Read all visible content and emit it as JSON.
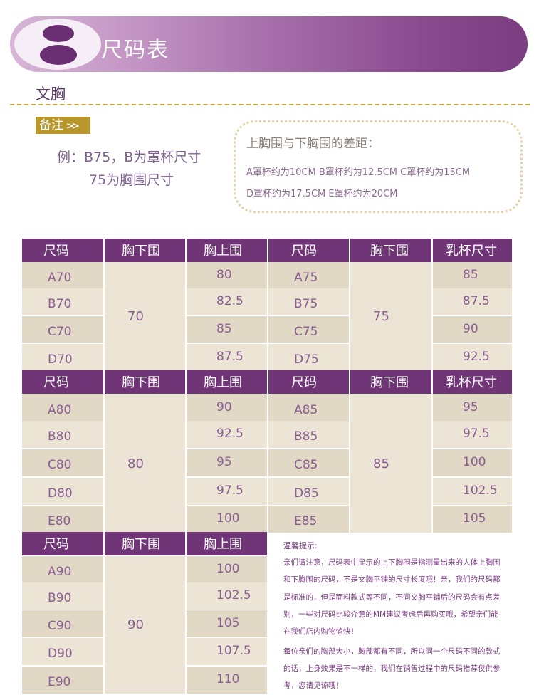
{
  "header": {
    "title": "尺码表"
  },
  "section": {
    "title": "文胸"
  },
  "note": {
    "badge": "备注",
    "badge_arrows": ">>",
    "example_line1": "例：B75，B为罩杯尺寸",
    "example_line2": "75为胸围尺寸"
  },
  "difference": {
    "title": "上胸围与下胸围的差距：",
    "line1": "A罩杯约为10CM  B罩杯约为12.5CM   C罩杯约为15CM",
    "line2": "D罩杯约为17.5CM  E罩杯约为20CM"
  },
  "headers": {
    "size": "尺码",
    "under_bust": "胸下围",
    "upper_bust": "胸上围",
    "cup_size": "乳杯尺寸"
  },
  "table1": {
    "left": {
      "under": "70",
      "sizes": [
        "A70",
        "B70",
        "C70",
        "D70"
      ],
      "upper": [
        "80",
        "82.5",
        "85",
        "87.5"
      ]
    },
    "right": {
      "under": "75",
      "sizes": [
        "A75",
        "B75",
        "C75",
        "D75"
      ],
      "upper": [
        "85",
        "87.5",
        "90",
        "92.5"
      ]
    }
  },
  "table2": {
    "left": {
      "under": "80",
      "sizes": [
        "A80",
        "B80",
        "C80",
        "D80",
        "E80"
      ],
      "upper": [
        "90",
        "92.5",
        "95",
        "97.5",
        "100"
      ]
    },
    "right": {
      "under": "85",
      "sizes": [
        "A85",
        "B85",
        "C85",
        "D85",
        "E85"
      ],
      "upper": [
        "95",
        "97.5",
        "100",
        "102.5",
        "105"
      ]
    }
  },
  "table3": {
    "left": {
      "under": "90",
      "sizes": [
        "A90",
        "B90",
        "C90",
        "D90",
        "E90"
      ],
      "upper": [
        "100",
        "102.5",
        "105",
        "107.5",
        "110"
      ]
    }
  },
  "tips": {
    "title": "温馨提示:",
    "lines": [
      "亲们请注意，尺码表中显示的上下胸围是指测量出来的人体上胸围",
      "和下胸围的尺码，不是文胸平铺的尺寸长度哦！亲，我们的尺码都",
      "是标准的，但是面料款式等不同，不同文胸平铺后的尺码会有点差",
      "别，一些对尺码比较介意的MM建议考虑后再购买哦，希望亲们能",
      "在我们店内购物愉快！",
      "每位亲们的胸部大小，胸部都有不同，所以同一个尺码不同的款式",
      "的话，上身效果是不一样的，我们在销售过程中的尺码推荐仅供参",
      "考，您请见谅哦！"
    ]
  },
  "colors": {
    "header_purple": "#6f3576",
    "row_a": "#e1d8c6",
    "row_b": "#ece5d6",
    "gold": "#b9962b"
  }
}
